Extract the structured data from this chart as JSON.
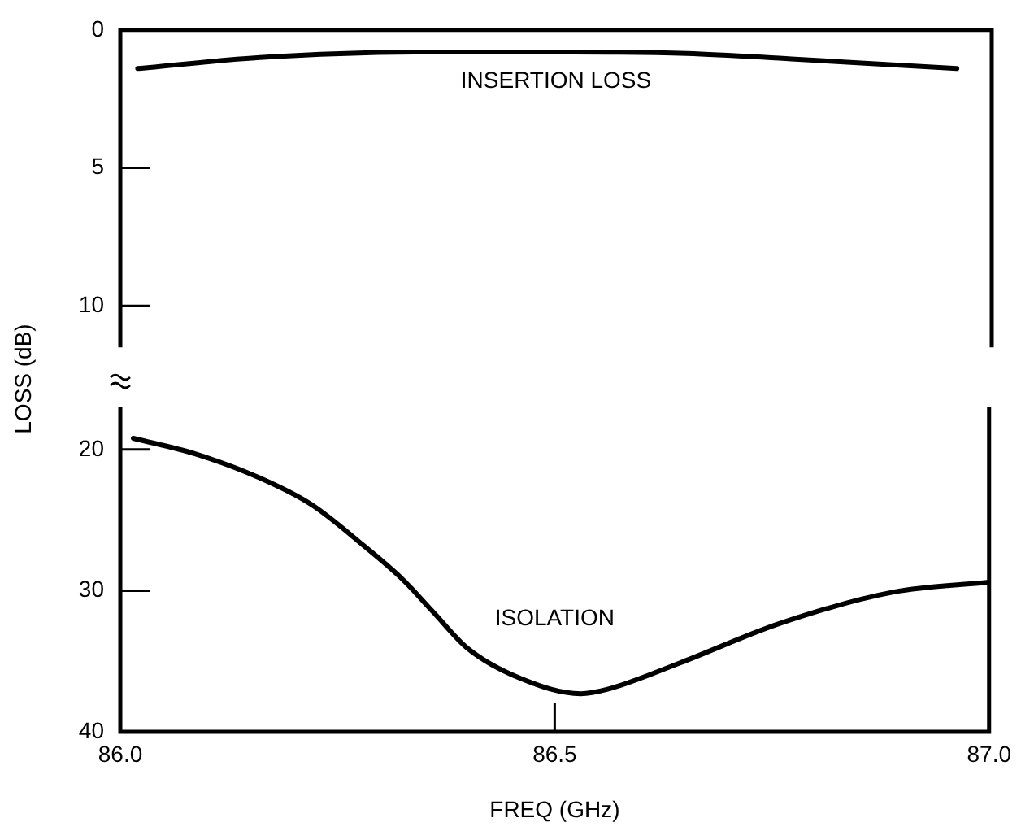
{
  "chart_data": [
    {
      "type": "line",
      "ylabel": "LOSS (dB)",
      "xlim": [
        86.0,
        87.0
      ],
      "ylim": [
        11.5,
        0
      ],
      "yticks": [
        0,
        5,
        10
      ],
      "tick_labels": "y",
      "grid": false,
      "legend": false,
      "marker": "none",
      "line_style": "solid",
      "series": [
        {
          "name": "INSERTION LOSS",
          "color": "#000000",
          "x": [
            86.02,
            86.16,
            86.35,
            86.52,
            86.65,
            86.77,
            86.96
          ],
          "values": [
            1.4,
            1.0,
            0.8,
            0.8,
            0.85,
            1.05,
            1.4
          ]
        }
      ]
    },
    {
      "type": "line",
      "xlabel": "FREQ (GHz)",
      "xlim": [
        86.0,
        87.0
      ],
      "xticks": [
        {
          "value": 86.0,
          "label": "86.0"
        },
        {
          "value": 86.5,
          "label": "86.5"
        },
        {
          "value": 87.0,
          "label": "87.0"
        }
      ],
      "ylim": [
        40,
        17
      ],
      "yticks": [
        20,
        30,
        40
      ],
      "grid": false,
      "legend": false,
      "marker": "none",
      "line_style": "solid",
      "series": [
        {
          "name": "ISOLATION",
          "color": "#000000",
          "x": [
            86.015,
            86.086,
            86.16,
            86.22,
            86.28,
            86.325,
            86.36,
            86.4,
            86.46,
            86.53,
            86.56,
            86.645,
            86.76,
            86.89,
            87.0
          ],
          "values": [
            19.2,
            20.3,
            22.0,
            23.9,
            26.8,
            29.2,
            31.5,
            34.1,
            36.2,
            37.3,
            37.0,
            35.1,
            32.3,
            30.1,
            29.4
          ]
        }
      ]
    }
  ]
}
